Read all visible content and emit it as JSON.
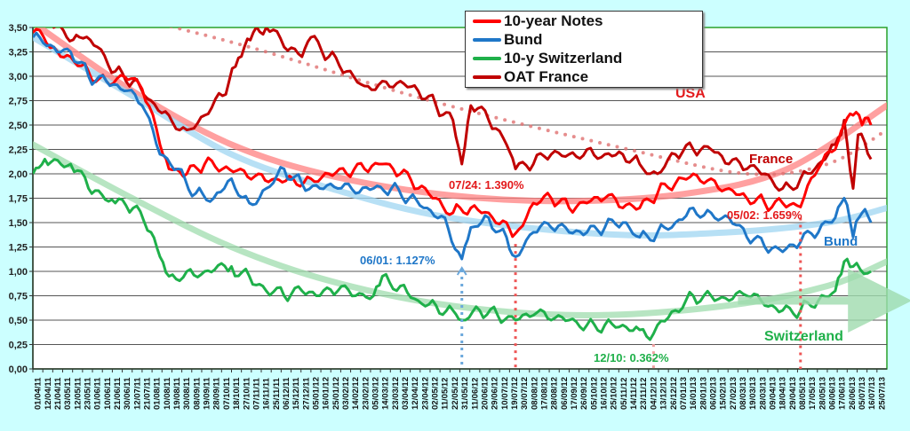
{
  "chart_data": {
    "type": "line",
    "title": "",
    "xlabel": "",
    "ylabel": "",
    "ylim": [
      0,
      3.5
    ],
    "yticks": [
      "0,00",
      "0,25",
      "0,50",
      "0,75",
      "1,00",
      "1,25",
      "1,50",
      "1,75",
      "2,00",
      "2,25",
      "2,50",
      "2,75",
      "3,00",
      "3,25",
      "3,50"
    ],
    "grid": "horizontal",
    "legend_position": "top-center",
    "categories": [
      "01/04/11",
      "12/04/11",
      "21/04/11",
      "03/05/11",
      "12/05/11",
      "23/05/11",
      "01/06/11",
      "10/06/11",
      "21/06/11",
      "30/06/11",
      "12/07/11",
      "21/07/11",
      "01/08/11",
      "10/08/11",
      "19/08/11",
      "30/08/11",
      "08/09/11",
      "19/09/11",
      "28/09/11",
      "07/10/11",
      "18/10/11",
      "27/10/11",
      "07/11/11",
      "16/11/11",
      "25/11/11",
      "06/12/11",
      "15/12/11",
      "27/12/11",
      "05/01/12",
      "16/01/12",
      "25/01/12",
      "03/02/12",
      "14/02/12",
      "23/02/12",
      "05/03/12",
      "14/03/12",
      "23/03/12",
      "03/04/12",
      "12/04/12",
      "23/04/12",
      "02/05/12",
      "11/05/12",
      "22/05/12",
      "31/05/12",
      "11/06/12",
      "20/06/12",
      "29/06/12",
      "10/07/12",
      "19/07/12",
      "30/07/12",
      "08/08/12",
      "17/08/12",
      "28/08/12",
      "06/09/12",
      "17/09/12",
      "26/09/12",
      "05/10/12",
      "16/10/12",
      "25/10/12",
      "05/11/12",
      "14/11/12",
      "23/11/12",
      "04/12/12",
      "13/12/12",
      "26/12/12",
      "07/01/13",
      "16/01/13",
      "28/01/13",
      "06/02/13",
      "15/02/13",
      "27/02/13",
      "08/03/13",
      "19/03/13",
      "28/03/13",
      "09/04/13",
      "18/04/13",
      "29/04/13",
      "08/05/13",
      "17/05/13",
      "28/05/13",
      "06/06/13",
      "17/06/13",
      "26/06/13",
      "05/07/13",
      "16/07/13",
      "25/07/13"
    ],
    "series": [
      {
        "name": "10-year Notes",
        "color": "#ff0000",
        "points": [
          [
            0,
            3.45
          ],
          [
            2.1,
            3.3
          ],
          [
            3.8,
            3.2
          ],
          [
            5.6,
            3.05
          ],
          [
            7.4,
            2.95
          ],
          [
            9.2,
            3.0
          ],
          [
            11.0,
            2.87
          ],
          [
            12.8,
            2.3
          ],
          [
            13.7,
            2.05
          ],
          [
            15.5,
            2.0
          ],
          [
            17.3,
            2.1
          ],
          [
            19.1,
            2.05
          ],
          [
            20.9,
            2.05
          ],
          [
            22.7,
            2.0
          ],
          [
            24.4,
            1.95
          ],
          [
            26.2,
            1.95
          ],
          [
            28.0,
            1.95
          ],
          [
            29.8,
            2.0
          ],
          [
            31.6,
            2.0
          ],
          [
            33.4,
            2.05
          ],
          [
            35.2,
            2.1
          ],
          [
            37.0,
            2.0
          ],
          [
            38.8,
            1.85
          ],
          [
            40.6,
            1.75
          ],
          [
            42.3,
            1.6
          ],
          [
            44.1,
            1.65
          ],
          [
            45.9,
            1.6
          ],
          [
            47.7,
            1.5
          ],
          [
            48.6,
            1.39
          ],
          [
            50.4,
            1.7
          ],
          [
            52.2,
            1.75
          ],
          [
            54.0,
            1.65
          ],
          [
            55.8,
            1.7
          ],
          [
            57.6,
            1.75
          ],
          [
            59.4,
            1.65
          ],
          [
            61.1,
            1.65
          ],
          [
            62.9,
            1.8
          ],
          [
            64.7,
            1.9
          ],
          [
            66.5,
            2.0
          ],
          [
            68.3,
            1.95
          ],
          [
            70.1,
            1.85
          ],
          [
            71.9,
            1.75
          ],
          [
            73.7,
            1.7
          ],
          [
            75.5,
            1.7
          ],
          [
            77.3,
            1.66
          ],
          [
            79.1,
            2.05
          ],
          [
            80.8,
            2.25
          ],
          [
            81.7,
            2.5
          ],
          [
            82.6,
            2.6
          ],
          [
            83.5,
            2.5
          ],
          [
            84.4,
            2.5
          ]
        ]
      },
      {
        "name": "Bund",
        "color": "#1f77c8",
        "points": [
          [
            0,
            3.4
          ],
          [
            2.1,
            3.3
          ],
          [
            3.8,
            3.25
          ],
          [
            5.6,
            3.0
          ],
          [
            7.4,
            2.95
          ],
          [
            9.2,
            2.85
          ],
          [
            11.0,
            2.7
          ],
          [
            12.8,
            2.2
          ],
          [
            14.6,
            2.05
          ],
          [
            16.4,
            1.8
          ],
          [
            18.2,
            1.75
          ],
          [
            20.0,
            1.95
          ],
          [
            21.8,
            1.7
          ],
          [
            23.5,
            1.85
          ],
          [
            25.3,
            2.05
          ],
          [
            27.1,
            1.9
          ],
          [
            28.9,
            1.85
          ],
          [
            30.7,
            1.85
          ],
          [
            32.5,
            1.8
          ],
          [
            34.3,
            1.85
          ],
          [
            36.1,
            1.85
          ],
          [
            37.9,
            1.75
          ],
          [
            39.7,
            1.65
          ],
          [
            41.5,
            1.55
          ],
          [
            43.2,
            1.127
          ],
          [
            44.1,
            1.45
          ],
          [
            45.9,
            1.55
          ],
          [
            47.7,
            1.35
          ],
          [
            48.6,
            1.15
          ],
          [
            50.4,
            1.4
          ],
          [
            52.2,
            1.45
          ],
          [
            54.0,
            1.4
          ],
          [
            55.8,
            1.4
          ],
          [
            57.6,
            1.45
          ],
          [
            59.4,
            1.5
          ],
          [
            61.1,
            1.35
          ],
          [
            62.9,
            1.4
          ],
          [
            64.7,
            1.5
          ],
          [
            66.5,
            1.65
          ],
          [
            68.3,
            1.6
          ],
          [
            70.1,
            1.55
          ],
          [
            71.9,
            1.35
          ],
          [
            73.7,
            1.25
          ],
          [
            75.5,
            1.2
          ],
          [
            77.3,
            1.3
          ],
          [
            79.1,
            1.4
          ],
          [
            80.8,
            1.55
          ],
          [
            81.7,
            1.75
          ],
          [
            82.6,
            1.35
          ],
          [
            83.5,
            1.6
          ],
          [
            84.4,
            1.5
          ]
        ]
      },
      {
        "name": "10-y Switzerland",
        "color": "#1fb04a",
        "points": [
          [
            0,
            2.0
          ],
          [
            1.2,
            2.15
          ],
          [
            3.8,
            2.1
          ],
          [
            5.6,
            1.85
          ],
          [
            8.3,
            1.7
          ],
          [
            10.1,
            1.65
          ],
          [
            11.9,
            1.4
          ],
          [
            12.8,
            1.15
          ],
          [
            13.7,
            0.95
          ],
          [
            15.5,
            1.0
          ],
          [
            17.3,
            1.0
          ],
          [
            20.0,
            1.05
          ],
          [
            21.8,
            0.95
          ],
          [
            23.5,
            0.8
          ],
          [
            25.3,
            0.75
          ],
          [
            27.1,
            0.8
          ],
          [
            28.9,
            0.75
          ],
          [
            30.7,
            0.8
          ],
          [
            32.5,
            0.75
          ],
          [
            34.3,
            0.75
          ],
          [
            35.2,
            0.95
          ],
          [
            37.0,
            0.85
          ],
          [
            38.8,
            0.7
          ],
          [
            40.6,
            0.65
          ],
          [
            42.3,
            0.6
          ],
          [
            43.2,
            0.5
          ],
          [
            45.0,
            0.6
          ],
          [
            46.8,
            0.55
          ],
          [
            48.6,
            0.5
          ],
          [
            50.4,
            0.55
          ],
          [
            52.2,
            0.5
          ],
          [
            54.0,
            0.5
          ],
          [
            55.8,
            0.45
          ],
          [
            57.6,
            0.45
          ],
          [
            59.4,
            0.45
          ],
          [
            61.1,
            0.4
          ],
          [
            62.5,
            0.362
          ],
          [
            62.9,
            0.45
          ],
          [
            64.7,
            0.6
          ],
          [
            66.5,
            0.75
          ],
          [
            68.3,
            0.75
          ],
          [
            70.1,
            0.7
          ],
          [
            71.9,
            0.75
          ],
          [
            73.7,
            0.65
          ],
          [
            75.5,
            0.6
          ],
          [
            77.3,
            0.6
          ],
          [
            79.1,
            0.7
          ],
          [
            80.8,
            0.8
          ],
          [
            81.7,
            1.1
          ],
          [
            82.6,
            1.05
          ],
          [
            84.4,
            1.0
          ]
        ]
      },
      {
        "name": "OAT France",
        "color": "#c00000",
        "points": [
          [
            0,
            3.6
          ],
          [
            2.1,
            3.5
          ],
          [
            4.7,
            3.4
          ],
          [
            6.5,
            3.3
          ],
          [
            8.3,
            3.05
          ],
          [
            10.1,
            2.95
          ],
          [
            11.9,
            2.75
          ],
          [
            13.7,
            2.6
          ],
          [
            15.5,
            2.45
          ],
          [
            17.3,
            2.6
          ],
          [
            19.1,
            2.8
          ],
          [
            20.4,
            3.1
          ],
          [
            21.3,
            3.3
          ],
          [
            22.2,
            3.45
          ],
          [
            23.5,
            3.5
          ],
          [
            25.3,
            3.3
          ],
          [
            27.1,
            3.2
          ],
          [
            28.0,
            3.4
          ],
          [
            29.8,
            3.2
          ],
          [
            31.6,
            3.05
          ],
          [
            33.4,
            2.9
          ],
          [
            35.2,
            2.95
          ],
          [
            37.0,
            2.95
          ],
          [
            38.8,
            2.85
          ],
          [
            40.6,
            2.7
          ],
          [
            42.3,
            2.55
          ],
          [
            43.2,
            2.1
          ],
          [
            44.1,
            2.7
          ],
          [
            45.9,
            2.55
          ],
          [
            47.7,
            2.3
          ],
          [
            48.6,
            2.05
          ],
          [
            50.4,
            2.1
          ],
          [
            52.2,
            2.2
          ],
          [
            54.0,
            2.2
          ],
          [
            55.8,
            2.25
          ],
          [
            57.6,
            2.2
          ],
          [
            59.4,
            2.2
          ],
          [
            61.1,
            2.1
          ],
          [
            62.9,
            2.0
          ],
          [
            64.7,
            2.2
          ],
          [
            66.5,
            2.25
          ],
          [
            68.3,
            2.25
          ],
          [
            70.1,
            2.1
          ],
          [
            71.9,
            2.05
          ],
          [
            73.7,
            2.0
          ],
          [
            75.5,
            1.85
          ],
          [
            77.3,
            1.95
          ],
          [
            79.1,
            2.1
          ],
          [
            80.8,
            2.3
          ],
          [
            81.7,
            2.55
          ],
          [
            82.6,
            1.85
          ],
          [
            83.1,
            2.4
          ],
          [
            84.4,
            2.15
          ]
        ]
      }
    ],
    "trendlines": [
      {
        "series": "10-year Notes",
        "color": "#ff8080",
        "style": "thick",
        "points": [
          [
            0,
            3.55
          ],
          [
            10,
            2.85
          ],
          [
            20,
            2.3
          ],
          [
            30,
            1.98
          ],
          [
            42,
            1.78
          ],
          [
            54,
            1.72
          ],
          [
            66,
            1.8
          ],
          [
            76,
            2.05
          ],
          [
            86,
            2.7
          ]
        ]
      },
      {
        "series": "Bund",
        "color": "#9fd6f2",
        "style": "thick",
        "points": [
          [
            0,
            3.4
          ],
          [
            10,
            2.8
          ],
          [
            20,
            2.2
          ],
          [
            30,
            1.85
          ],
          [
            42,
            1.55
          ],
          [
            58,
            1.38
          ],
          [
            70,
            1.4
          ],
          [
            80,
            1.5
          ],
          [
            86,
            1.65
          ]
        ]
      },
      {
        "series": "10-y Switzerland",
        "color": "#9fdcae",
        "style": "thick",
        "points": [
          [
            0,
            2.3
          ],
          [
            10,
            1.75
          ],
          [
            20,
            1.25
          ],
          [
            30,
            0.9
          ],
          [
            42,
            0.65
          ],
          [
            56,
            0.55
          ],
          [
            70,
            0.65
          ],
          [
            80,
            0.85
          ],
          [
            86,
            1.1
          ]
        ]
      },
      {
        "series": "OAT France",
        "color": "#e07070",
        "style": "dotted",
        "points": [
          [
            0,
            3.85
          ],
          [
            20,
            3.35
          ],
          [
            40,
            2.75
          ],
          [
            60,
            2.25
          ],
          [
            72,
            2.0
          ],
          [
            80,
            2.1
          ],
          [
            86,
            2.45
          ]
        ]
      }
    ],
    "annotations": [
      {
        "text": "07/24: 1.390%",
        "color": "#e31a1c",
        "marker_index": 48.6,
        "marker_value": 1.39
      },
      {
        "text": "06/01: 1.127%",
        "color": "#1f77c8",
        "marker_index": 43.2,
        "marker_value": 1.127
      },
      {
        "text": "05/02: 1.659%",
        "color": "#e31a1c",
        "marker_index": 77.3,
        "marker_value": 1.659
      },
      {
        "text": "12/10: 0.362%",
        "color": "#1fb04a",
        "marker_index": 62.5,
        "marker_value": 0.362
      }
    ],
    "series_labels": [
      {
        "text": "USA",
        "color": "#e31a1c"
      },
      {
        "text": "France",
        "color": "#c00000"
      },
      {
        "text": "Bund",
        "color": "#1f77c8"
      },
      {
        "text": "Switzerland",
        "color": "#1fb04a"
      }
    ]
  }
}
